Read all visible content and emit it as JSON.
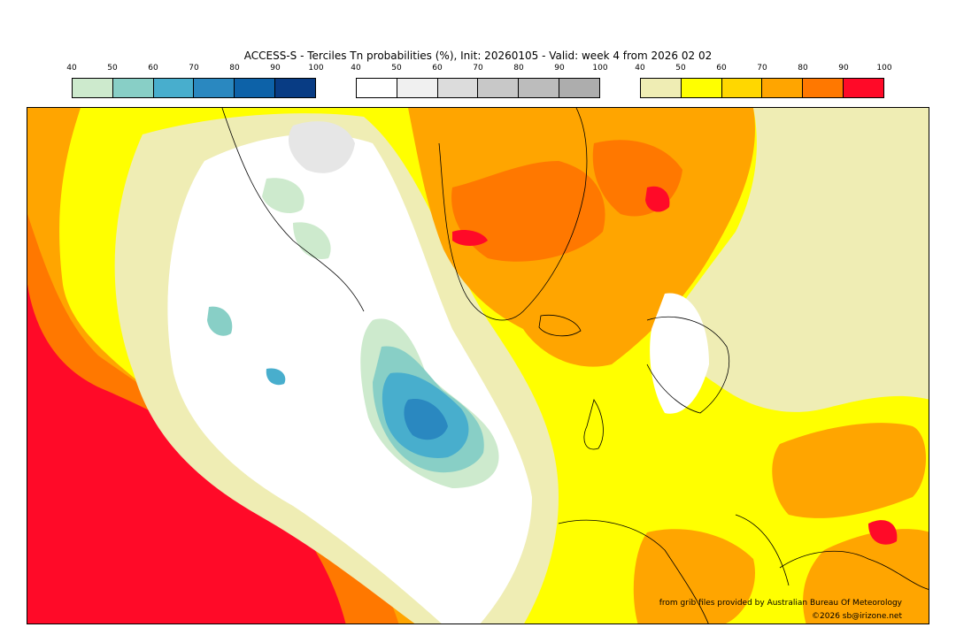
{
  "title": "ACCESS-S - Terciles Tn probabilities (%), Init: 20260105 - Valid: week 4 from 2026 02 02",
  "legends": [
    {
      "ticks": [
        "40",
        "50",
        "60",
        "70",
        "80",
        "90",
        "100"
      ],
      "colors": [
        "#cdeacd",
        "#88cfc6",
        "#48aecd",
        "#2a88c0",
        "#0d62a8",
        "#083c84"
      ]
    },
    {
      "ticks": [
        "40",
        "50",
        "60",
        "70",
        "80",
        "90",
        "100"
      ],
      "colors": [
        "#ffffff",
        "#f0f0f0",
        "#dcdcdc",
        "#c8c8c8",
        "#bcbcbc",
        "#adadad"
      ]
    },
    {
      "ticks": [
        "40",
        "50",
        "60",
        "70",
        "80",
        "90",
        "100"
      ],
      "colors": [
        "#efedb4",
        "#ffff00",
        "#ffd700",
        "#ffa500",
        "#ff7800",
        "#ff0a28"
      ]
    }
  ],
  "credit_line": "from grib files provided by Australian Bureau Of Meteorology",
  "copyright": "©2026 sb@irizone.net"
}
